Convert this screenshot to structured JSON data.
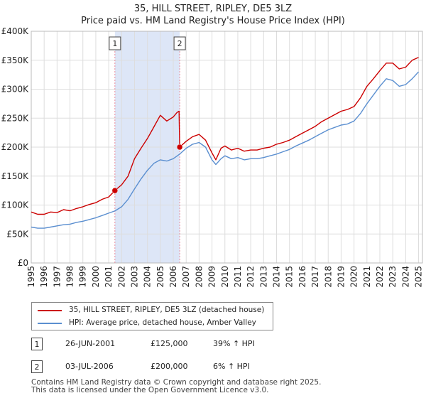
{
  "title": "35, HILL STREET, RIPLEY, DE5 3LZ",
  "subtitle": "Price paid vs. HM Land Registry's House Price Index (HPI)",
  "colors": {
    "property": "#cc0000",
    "hpi": "#5b8fd0",
    "shade": "#dde6f7",
    "grid": "#dddddd",
    "marker_line": "#e88a9a"
  },
  "legend": {
    "property_label": "35, HILL STREET, RIPLEY, DE5 3LZ (detached house)",
    "hpi_label": "HPI: Average price, detached house, Amber Valley"
  },
  "sales": [
    {
      "num": "1",
      "date": "26-JUN-2001",
      "price": "£125,000",
      "hpi": "39% ↑ HPI"
    },
    {
      "num": "2",
      "date": "03-JUL-2006",
      "price": "£200,000",
      "hpi": "6% ↑ HPI"
    }
  ],
  "footer": {
    "line1": "Contains HM Land Registry data © Crown copyright and database right 2025.",
    "line2": "This data is licensed under the Open Government Licence v3.0."
  },
  "chart_data": {
    "type": "line",
    "title": "35, HILL STREET, RIPLEY, DE5 3LZ",
    "subtitle": "Price paid vs. HM Land Registry's House Price Index (HPI)",
    "xlabel": "",
    "ylabel": "",
    "xlim": [
      1995,
      2025.3
    ],
    "ylim": [
      0,
      400000
    ],
    "yticks": [
      0,
      50000,
      100000,
      150000,
      200000,
      250000,
      300000,
      350000,
      400000
    ],
    "ytick_labels": [
      "£0",
      "£50K",
      "£100K",
      "£150K",
      "£200K",
      "£250K",
      "£300K",
      "£350K",
      "£400K"
    ],
    "xticks": [
      "1995",
      "1996",
      "1997",
      "1998",
      "1999",
      "2000",
      "2001",
      "2002",
      "2003",
      "2004",
      "2005",
      "2006",
      "2007",
      "2008",
      "2009",
      "2010",
      "2011",
      "2012",
      "2013",
      "2014",
      "2015",
      "2016",
      "2017",
      "2018",
      "2019",
      "2020",
      "2021",
      "2022",
      "2023",
      "2024",
      "2025"
    ],
    "shaded_region": [
      2001.48,
      2006.5
    ],
    "sale_markers": [
      {
        "label": "1",
        "x": 2001.48,
        "y": 125000
      },
      {
        "label": "2",
        "x": 2006.5,
        "y": 200000
      }
    ],
    "series": [
      {
        "name": "35, HILL STREET, RIPLEY, DE5 3LZ (detached house)",
        "x": [
          1995.0,
          1995.5,
          1996.0,
          1996.5,
          1997.0,
          1997.5,
          1998.0,
          1998.5,
          1999.0,
          1999.5,
          2000.0,
          2000.5,
          2001.0,
          2001.48,
          2002.0,
          2002.5,
          2003.0,
          2003.5,
          2004.0,
          2004.5,
          2005.0,
          2005.5,
          2006.0,
          2006.3,
          2006.45,
          2006.5,
          2007.0,
          2007.5,
          2008.0,
          2008.5,
          2009.0,
          2009.3,
          2009.7,
          2010.0,
          2010.5,
          2011.0,
          2011.5,
          2012.0,
          2012.5,
          2013.0,
          2013.5,
          2014.0,
          2014.5,
          2015.0,
          2015.5,
          2016.0,
          2016.5,
          2017.0,
          2017.5,
          2018.0,
          2018.5,
          2019.0,
          2019.5,
          2020.0,
          2020.5,
          2021.0,
          2021.5,
          2022.0,
          2022.5,
          2023.0,
          2023.5,
          2024.0,
          2024.5,
          2025.0
        ],
        "values": [
          88000,
          84000,
          84000,
          88000,
          87000,
          92000,
          90000,
          94000,
          97000,
          101000,
          104000,
          110000,
          114000,
          125000,
          135000,
          150000,
          180000,
          198000,
          215000,
          235000,
          255000,
          245000,
          252000,
          260000,
          262000,
          200000,
          210000,
          218000,
          222000,
          212000,
          190000,
          178000,
          198000,
          202000,
          195000,
          198000,
          193000,
          195000,
          195000,
          198000,
          200000,
          205000,
          208000,
          212000,
          218000,
          224000,
          230000,
          236000,
          244000,
          250000,
          256000,
          262000,
          265000,
          270000,
          285000,
          305000,
          318000,
          332000,
          345000,
          345000,
          335000,
          338000,
          350000,
          355000
        ]
      },
      {
        "name": "HPI: Average price, detached house, Amber Valley",
        "x": [
          1995.0,
          1995.5,
          1996.0,
          1996.5,
          1997.0,
          1997.5,
          1998.0,
          1998.5,
          1999.0,
          1999.5,
          2000.0,
          2000.5,
          2001.0,
          2001.5,
          2002.0,
          2002.5,
          2003.0,
          2003.5,
          2004.0,
          2004.5,
          2005.0,
          2005.5,
          2006.0,
          2006.5,
          2007.0,
          2007.5,
          2008.0,
          2008.5,
          2009.0,
          2009.3,
          2009.7,
          2010.0,
          2010.5,
          2011.0,
          2011.5,
          2012.0,
          2012.5,
          2013.0,
          2013.5,
          2014.0,
          2014.5,
          2015.0,
          2015.5,
          2016.0,
          2016.5,
          2017.0,
          2017.5,
          2018.0,
          2018.5,
          2019.0,
          2019.5,
          2020.0,
          2020.5,
          2021.0,
          2021.5,
          2022.0,
          2022.5,
          2023.0,
          2023.5,
          2024.0,
          2024.5,
          2025.0
        ],
        "values": [
          62000,
          60000,
          60000,
          62000,
          64000,
          66000,
          67000,
          70000,
          72000,
          75000,
          78000,
          82000,
          86000,
          90000,
          97000,
          110000,
          128000,
          145000,
          160000,
          172000,
          178000,
          176000,
          180000,
          188000,
          198000,
          205000,
          208000,
          200000,
          178000,
          170000,
          180000,
          185000,
          180000,
          182000,
          178000,
          180000,
          180000,
          182000,
          185000,
          188000,
          192000,
          196000,
          202000,
          207000,
          212000,
          218000,
          224000,
          230000,
          234000,
          238000,
          240000,
          245000,
          258000,
          275000,
          290000,
          305000,
          318000,
          315000,
          305000,
          308000,
          318000,
          330000
        ]
      }
    ]
  }
}
